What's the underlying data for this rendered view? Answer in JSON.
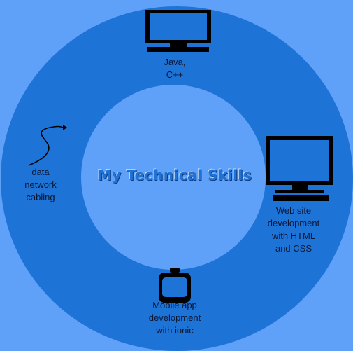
{
  "title": "My Technical Skills",
  "skills": [
    {
      "label": "Java,\nC++",
      "icon": "monitor-icon"
    },
    {
      "label": "Web site\ndevelopment\nwith HTML\nand CSS",
      "icon": "monitor-icon"
    },
    {
      "label": "Mobile app\ndevelopment\nwith ionic",
      "icon": "mobile-device-icon"
    },
    {
      "label": "data\nnetwork\ncabling",
      "icon": "cable-icon"
    }
  ],
  "colors": {
    "background": "#5fa0f8",
    "ring": "#1e73d6",
    "center": "#5fa0f8",
    "title": "#1f73d6"
  }
}
